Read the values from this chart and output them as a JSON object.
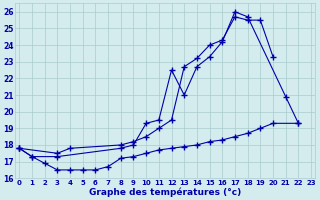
{
  "x_values": [
    0,
    1,
    2,
    3,
    4,
    5,
    6,
    7,
    8,
    9,
    10,
    11,
    12,
    13,
    14,
    15,
    16,
    17,
    18,
    19,
    20,
    21,
    22,
    23
  ],
  "line_top": [
    17.8,
    17.3,
    null,
    17.3,
    null,
    null,
    null,
    null,
    17.8,
    18.0,
    19.3,
    19.5,
    22.5,
    21.0,
    22.7,
    23.3,
    24.2,
    26.0,
    25.7,
    null,
    null,
    20.9,
    19.3,
    null
  ],
  "line_mid": [
    17.8,
    null,
    null,
    17.5,
    17.8,
    null,
    null,
    null,
    18.0,
    18.2,
    18.5,
    19.0,
    19.5,
    22.7,
    23.2,
    24.0,
    24.3,
    25.7,
    25.5,
    25.5,
    23.3,
    null,
    null,
    null
  ],
  "line_bot": [
    17.8,
    17.3,
    16.9,
    16.5,
    16.5,
    16.5,
    16.5,
    16.7,
    17.2,
    17.3,
    17.5,
    17.7,
    17.8,
    17.9,
    18.0,
    18.2,
    18.3,
    18.5,
    18.7,
    19.0,
    19.3,
    null,
    19.3,
    null
  ],
  "bg_color": "#d4ecee",
  "line_color": "#0000aa",
  "grid_color": "#aacccc",
  "xlabel": "Graphe des températures (°c)",
  "ylim": [
    16,
    26.5
  ],
  "xlim": [
    -0.3,
    23.3
  ],
  "yticks": [
    16,
    17,
    18,
    19,
    20,
    21,
    22,
    23,
    24,
    25,
    26
  ],
  "xticks": [
    0,
    1,
    2,
    3,
    4,
    5,
    6,
    7,
    8,
    9,
    10,
    11,
    12,
    13,
    14,
    15,
    16,
    17,
    18,
    19,
    20,
    21,
    22,
    23
  ]
}
